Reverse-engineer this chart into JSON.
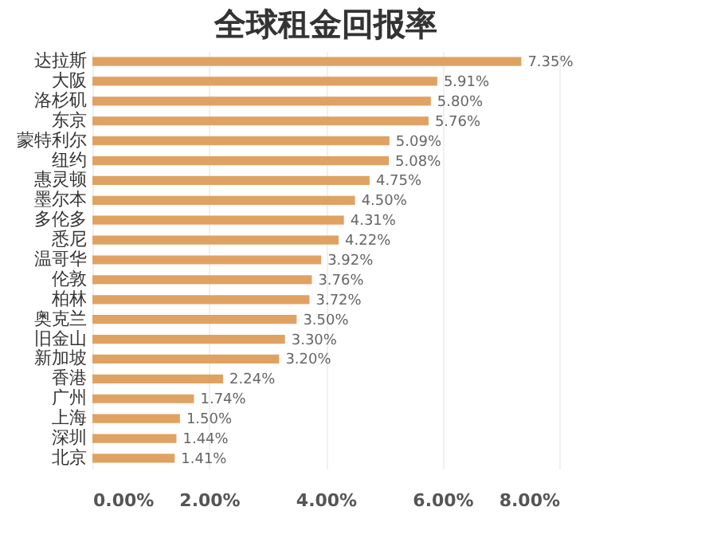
{
  "chart_data": {
    "type": "bar",
    "orientation": "horizontal",
    "title": "全球租金回报率",
    "categories": [
      "达拉斯",
      "大阪",
      "洛杉矶",
      "东京",
      "蒙特利尔",
      "纽约",
      "惠灵顿",
      "墨尔本",
      "多伦多",
      "悉尼",
      "温哥华",
      "伦敦",
      "柏林",
      "奥克兰",
      "旧金山",
      "新加坡",
      "香港",
      "广州",
      "上海",
      "深圳",
      "北京"
    ],
    "values": [
      7.35,
      5.91,
      5.8,
      5.76,
      5.09,
      5.08,
      4.75,
      4.5,
      4.31,
      4.22,
      3.92,
      3.76,
      3.72,
      3.5,
      3.3,
      3.2,
      2.24,
      1.74,
      1.5,
      1.44,
      1.41
    ],
    "value_labels": [
      "7.35%",
      "5.91%",
      "5.80%",
      "5.76%",
      "5.09%",
      "5.08%",
      "4.75%",
      "4.50%",
      "4.31%",
      "4.22%",
      "3.92%",
      "3.76%",
      "3.72%",
      "3.50%",
      "3.30%",
      "3.20%",
      "2.24%",
      "1.74%",
      "1.50%",
      "1.44%",
      "1.41%"
    ],
    "color": "#e0a262",
    "xlim": [
      0,
      8
    ],
    "xticks": [
      {
        "value": 0,
        "label": "0.00%"
      },
      {
        "value": 2,
        "label": "2.00%"
      },
      {
        "value": 4,
        "label": "4.00%"
      },
      {
        "value": 6,
        "label": "6.00%"
      },
      {
        "value": 8,
        "label": "8.00%"
      }
    ],
    "grid": "x"
  }
}
